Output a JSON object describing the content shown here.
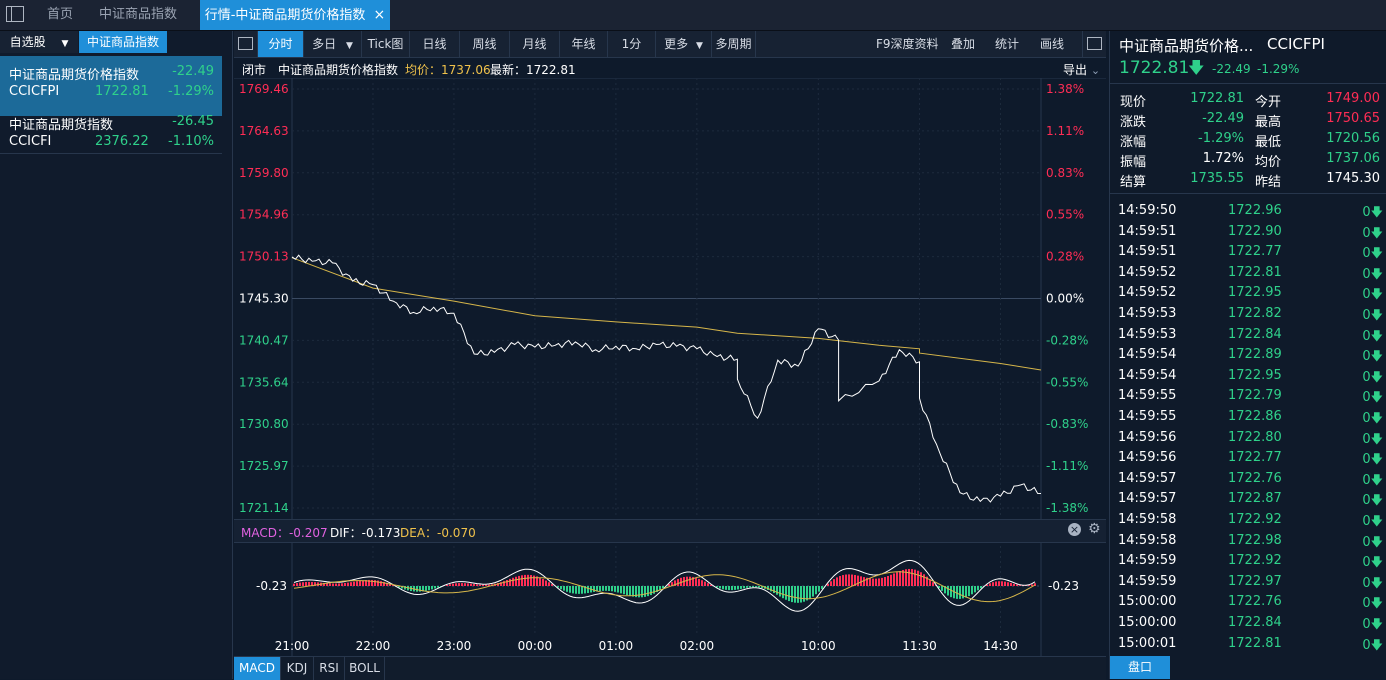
{
  "tabs": {
    "home": "首页",
    "index_tab": "中证商品指数",
    "active_tab": "行情-中证商品期货价格指数",
    "close_glyph": "×"
  },
  "left": {
    "tab_watchlist": "自选股",
    "tab_index": "中证商品指数",
    "dropdown_glyph": "▼",
    "items": [
      {
        "name": "中证商品期货价格指数",
        "change": "-22.49",
        "code": "CCICFPI",
        "price": "1722.81",
        "pct": "-1.29%"
      },
      {
        "name": "中证商品期货指数",
        "change": "-26.45",
        "code": "CCICFI",
        "price": "2376.22",
        "pct": "-1.10%"
      }
    ]
  },
  "toolbar": {
    "buttons": [
      "分时",
      "多日",
      "Tick图",
      "日线",
      "周线",
      "月线",
      "年线",
      "1分",
      "更多",
      "多周期"
    ],
    "right": [
      "F9深度资料",
      "叠加",
      "统计",
      "画线"
    ],
    "dropdown_glyph": "▼"
  },
  "infobar": {
    "status": "闭市",
    "name": "中证商品期货价格指数",
    "avg_label": "均价：1737.06",
    "last_label": "最新：1722.81",
    "export": "导出"
  },
  "chart_data": {
    "type": "line",
    "series": [
      {
        "name": "价格",
        "x": [
          "21:00",
          "21:15",
          "21:30",
          "21:45",
          "22:00",
          "22:15",
          "22:30",
          "22:45",
          "23:00",
          "23:15",
          "23:30",
          "23:45",
          "00:00",
          "00:15",
          "00:30",
          "00:45",
          "01:00",
          "01:15",
          "01:30",
          "01:45",
          "02:00",
          "02:15",
          "02:30",
          "09:00",
          "09:15",
          "09:30",
          "09:45",
          "10:00",
          "10:15",
          "10:30",
          "11:00",
          "11:15",
          "11:30",
          "13:30",
          "13:45",
          "14:00",
          "14:15",
          "14:30",
          "14:45",
          "15:00"
        ],
        "values": [
          1750.1,
          1749.6,
          1749.4,
          1747.3,
          1746.9,
          1745.0,
          1743.7,
          1744.3,
          1743.6,
          1738.9,
          1739.1,
          1740.0,
          1739.7,
          1739.9,
          1740.3,
          1739.4,
          1739.8,
          1739.5,
          1740.0,
          1739.8,
          1739.5,
          1738.6,
          1738.3,
          1736.0,
          1731.5,
          1738.2,
          1737.5,
          1741.8,
          1740.5,
          1733.5,
          1735.8,
          1739.4,
          1738.0,
          1733.8,
          1727.5,
          1722.9,
          1721.9,
          1722.5,
          1723.8,
          1722.81
        ]
      },
      {
        "name": "均价",
        "x": [
          "21:00",
          "22:00",
          "23:00",
          "00:00",
          "01:00",
          "02:00",
          "09:00",
          "10:00",
          "11:00",
          "11:30",
          "13:30",
          "14:30",
          "15:00"
        ],
        "values": [
          1750.0,
          1746.5,
          1745.0,
          1743.3,
          1742.6,
          1742.0,
          1741.3,
          1740.7,
          1739.9,
          1739.5,
          1739.0,
          1737.8,
          1737.06
        ]
      }
    ],
    "y_ticks": [
      "1769.46",
      "1764.63",
      "1759.80",
      "1754.96",
      "1750.13",
      "1745.30",
      "1740.47",
      "1735.64",
      "1730.80",
      "1725.97",
      "1721.14"
    ],
    "pct_ticks": [
      "1.38%",
      "1.11%",
      "0.83%",
      "0.55%",
      "0.28%",
      "0.00%",
      "-0.28%",
      "-0.55%",
      "-0.83%",
      "-1.11%",
      "-1.38%"
    ],
    "x_ticks": [
      "21:00",
      "22:00",
      "23:00",
      "00:00",
      "01:00",
      "02:00",
      "10:00",
      "11:30",
      "14:30"
    ],
    "ylim": [
      1721.14,
      1769.46
    ],
    "prev_settle": 1745.3
  },
  "macd": {
    "macd_label": "MACD：-0.207",
    "dif_label": "DIF：-0.173",
    "dea_label": "DEA：-0.070",
    "level_label": "-0.23",
    "level_label_right": "-0.23"
  },
  "indicators": [
    "MACD",
    "KDJ",
    "RSI",
    "BOLL"
  ],
  "right": {
    "title": "中证商品期货价格...",
    "code": "CCICFPI",
    "price": "1722.81",
    "change": "-22.49",
    "pct": "-1.29%",
    "quotes": [
      {
        "l1": "现价",
        "v1": "1722.81",
        "c1": "green",
        "l2": "今开",
        "v2": "1749.00",
        "c2": "red"
      },
      {
        "l1": "涨跌",
        "v1": "-22.49",
        "c1": "green",
        "l2": "最高",
        "v2": "1750.65",
        "c2": "red"
      },
      {
        "l1": "涨幅",
        "v1": "-1.29%",
        "c1": "green",
        "l2": "最低",
        "v2": "1720.56",
        "c2": "green"
      },
      {
        "l1": "振幅",
        "v1": "1.72%",
        "c1": "white",
        "l2": "均价",
        "v2": "1737.06",
        "c2": "green"
      },
      {
        "l1": "结算",
        "v1": "1735.55",
        "c1": "green",
        "l2": "昨结",
        "v2": "1745.30",
        "c2": "white"
      }
    ],
    "ticks": [
      {
        "time": "14:59:50",
        "price": "1722.96",
        "vol": "0"
      },
      {
        "time": "14:59:51",
        "price": "1722.90",
        "vol": "0"
      },
      {
        "time": "14:59:51",
        "price": "1722.77",
        "vol": "0"
      },
      {
        "time": "14:59:52",
        "price": "1722.81",
        "vol": "0"
      },
      {
        "time": "14:59:52",
        "price": "1722.95",
        "vol": "0"
      },
      {
        "time": "14:59:53",
        "price": "1722.82",
        "vol": "0"
      },
      {
        "time": "14:59:53",
        "price": "1722.84",
        "vol": "0"
      },
      {
        "time": "14:59:54",
        "price": "1722.89",
        "vol": "0"
      },
      {
        "time": "14:59:54",
        "price": "1722.95",
        "vol": "0"
      },
      {
        "time": "14:59:55",
        "price": "1722.79",
        "vol": "0"
      },
      {
        "time": "14:59:55",
        "price": "1722.86",
        "vol": "0"
      },
      {
        "time": "14:59:56",
        "price": "1722.80",
        "vol": "0"
      },
      {
        "time": "14:59:56",
        "price": "1722.77",
        "vol": "0"
      },
      {
        "time": "14:59:57",
        "price": "1722.76",
        "vol": "0"
      },
      {
        "time": "14:59:57",
        "price": "1722.87",
        "vol": "0"
      },
      {
        "time": "14:59:58",
        "price": "1722.92",
        "vol": "0"
      },
      {
        "time": "14:59:58",
        "price": "1722.98",
        "vol": "0"
      },
      {
        "time": "14:59:59",
        "price": "1722.92",
        "vol": "0"
      },
      {
        "time": "14:59:59",
        "price": "1722.97",
        "vol": "0"
      },
      {
        "time": "15:00:00",
        "price": "1722.76",
        "vol": "0"
      },
      {
        "time": "15:00:00",
        "price": "1722.84",
        "vol": "0"
      },
      {
        "time": "15:00:01",
        "price": "1722.81",
        "vol": "0"
      }
    ],
    "pankou": "盘口"
  },
  "colors": {
    "up": "#ff2d55",
    "down": "#2fd18b",
    "accent": "#1f8fd9",
    "avg_line": "#d6b64a",
    "price_line": "#ffffff"
  }
}
